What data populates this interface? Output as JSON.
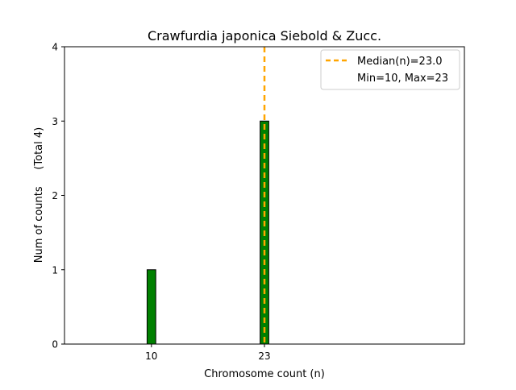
{
  "chart_data": {
    "type": "bar",
    "title": "Crawfurdia japonica Siebold & Zucc.",
    "xlabel": "Chromosome count (n)",
    "ylabel": "Num of counts     (Total 4)",
    "xlim": [
      0,
      46
    ],
    "ylim": [
      0,
      4
    ],
    "x_ticks": [
      10,
      23
    ],
    "y_ticks": [
      0,
      1,
      2,
      3,
      4
    ],
    "bars": [
      {
        "x": 10,
        "value": 1
      },
      {
        "x": 23,
        "value": 3
      }
    ],
    "median": 23.0,
    "legend": {
      "placement": "top-right",
      "entries": [
        "Median(n)=23.0",
        "Min=10, Max=23"
      ]
    },
    "colors": {
      "bar_fill": "#008000",
      "bar_edge": "#000000",
      "median_line": "#FFA500"
    }
  }
}
